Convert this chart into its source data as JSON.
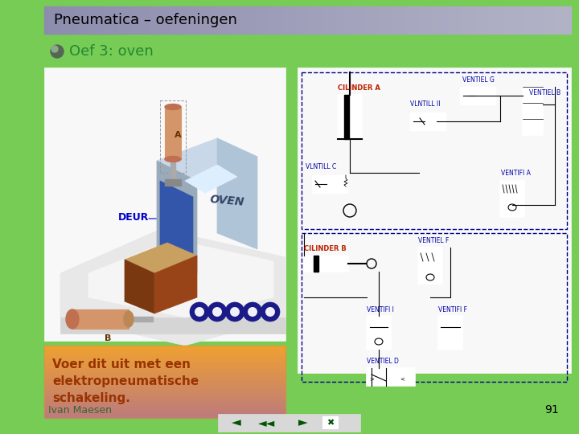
{
  "title": "Pneumatica – oefeningen",
  "subtitle": "Oef 3: oven",
  "body_text": "Voer dit uit met een\nelektropneumatische\nschakeling.",
  "author": "Ivan Maesen",
  "page_number": "91",
  "bg_color": "#77cc55",
  "header_color_left": "#8888aa",
  "header_color_right": "#bbbbcc",
  "title_text_color": "#000000",
  "subtitle_color": "#228833",
  "body_text_color": "#993300",
  "body_bg_color_top": "#f0a030",
  "body_bg_color_bottom": "#f8e0b0",
  "left_image_bg": "#f8f8f8",
  "right_image_bg": "#f8f8f8",
  "nav_bg": "#d8d8d8",
  "nav_border": "#228822",
  "author_color": "#336633"
}
